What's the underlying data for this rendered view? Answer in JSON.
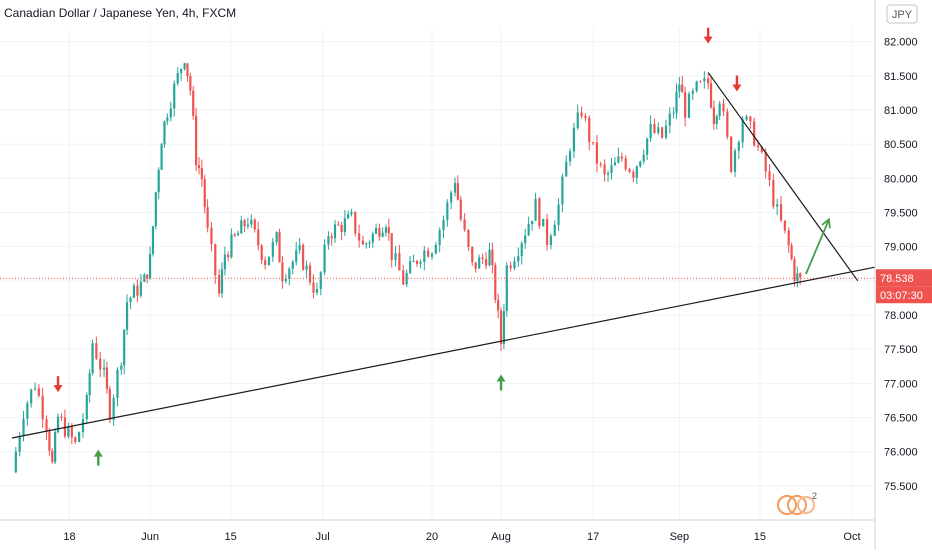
{
  "title": "Canadian Dollar / Japanese Yen, 4h, FXCM",
  "currency_badge": "JPY",
  "price_label": "78.538",
  "countdown_label": "03:07:30",
  "watermark_badge": "2",
  "colors": {
    "up": "#26a69a",
    "down": "#ef5350",
    "trendline": "#1a1a1a",
    "price_line": "#ef5350",
    "label_bg": "#ef5350",
    "arrow_red": "#e53935",
    "arrow_green": "#43a047",
    "grid": "#f0f3fa",
    "text": "#131722"
  },
  "chart_data": {
    "type": "candlestick",
    "title": "Canadian Dollar / Japanese Yen, 4h, FXCM",
    "y_axis": {
      "ticks": [
        "82.000",
        "81.500",
        "81.000",
        "80.500",
        "80.000",
        "79.500",
        "79.000",
        "78.500",
        "78.000",
        "77.500",
        "77.000",
        "76.500",
        "76.000",
        "75.500"
      ],
      "range": [
        75.0,
        82.2
      ],
      "side": "right"
    },
    "x_axis": {
      "ticks": [
        "18",
        "Jun",
        "15",
        "Jul",
        "20",
        "Aug",
        "17",
        "Sep",
        "15",
        "Oct"
      ]
    },
    "current_price": 78.538,
    "price_path": [
      {
        "t": "May 08",
        "price": 75.7
      },
      {
        "t": "May 10",
        "price": 76.6
      },
      {
        "t": "May 12",
        "price": 77.0
      },
      {
        "t": "May 14",
        "price": 76.4
      },
      {
        "t": "May 15",
        "price": 75.8
      },
      {
        "t": "May 16",
        "price": 76.5
      },
      {
        "t": "May 19",
        "price": 76.1
      },
      {
        "t": "May 21",
        "price": 76.7
      },
      {
        "t": "May 22",
        "price": 77.6
      },
      {
        "t": "May 24",
        "price": 77.1
      },
      {
        "t": "May 25",
        "price": 76.6
      },
      {
        "t": "May 27",
        "price": 77.4
      },
      {
        "t": "May 28",
        "price": 78.2
      },
      {
        "t": "May 31",
        "price": 78.5
      },
      {
        "t": "Jun 01",
        "price": 78.8
      },
      {
        "t": "Jun 02",
        "price": 79.8
      },
      {
        "t": "Jun 03",
        "price": 80.6
      },
      {
        "t": "Jun 04",
        "price": 81.0
      },
      {
        "t": "Jun 07",
        "price": 81.8
      },
      {
        "t": "Jun 08",
        "price": 81.3
      },
      {
        "t": "Jun 09",
        "price": 80.3
      },
      {
        "t": "Jun 10",
        "price": 80.0
      },
      {
        "t": "Jun 11",
        "price": 79.2
      },
      {
        "t": "Jun 13",
        "price": 78.3
      },
      {
        "t": "Jun 14",
        "price": 78.9
      },
      {
        "t": "Jun 18",
        "price": 79.4
      },
      {
        "t": "Jun 21",
        "price": 78.8
      },
      {
        "t": "Jun 23",
        "price": 79.1
      },
      {
        "t": "Jun 24",
        "price": 78.6
      },
      {
        "t": "Jun 27",
        "price": 78.9
      },
      {
        "t": "Jun 30",
        "price": 78.3
      },
      {
        "t": "Jul 02",
        "price": 79.2
      },
      {
        "t": "Jul 06",
        "price": 79.4
      },
      {
        "t": "Jul 08",
        "price": 79.0
      },
      {
        "t": "Jul 12",
        "price": 79.4
      },
      {
        "t": "Jul 13",
        "price": 78.9
      },
      {
        "t": "Jul 15",
        "price": 78.5
      },
      {
        "t": "Jul 18",
        "price": 78.9
      },
      {
        "t": "Jul 20",
        "price": 79.0
      },
      {
        "t": "Jul 22",
        "price": 79.4
      },
      {
        "t": "Jul 24",
        "price": 80.0
      },
      {
        "t": "Jul 25",
        "price": 79.4
      },
      {
        "t": "Jul 27",
        "price": 78.7
      },
      {
        "t": "Jul 30",
        "price": 78.9
      },
      {
        "t": "Jul 31",
        "price": 78.3
      },
      {
        "t": "Aug 01",
        "price": 77.6
      },
      {
        "t": "Aug 02",
        "price": 78.7
      },
      {
        "t": "Aug 04",
        "price": 79.0
      },
      {
        "t": "Aug 07",
        "price": 79.6
      },
      {
        "t": "Aug 09",
        "price": 79.1
      },
      {
        "t": "Aug 11",
        "price": 79.6
      },
      {
        "t": "Aug 13",
        "price": 80.5
      },
      {
        "t": "Aug 15",
        "price": 81.0
      },
      {
        "t": "Aug 17",
        "price": 80.4
      },
      {
        "t": "Aug 19",
        "price": 80.0
      },
      {
        "t": "Aug 22",
        "price": 80.3
      },
      {
        "t": "Aug 24",
        "price": 80.1
      },
      {
        "t": "Aug 27",
        "price": 80.7
      },
      {
        "t": "Aug 29",
        "price": 80.6
      },
      {
        "t": "Aug 31",
        "price": 81.0
      },
      {
        "t": "Sep 01",
        "price": 81.4
      },
      {
        "t": "Sep 02",
        "price": 81.0
      },
      {
        "t": "Sep 04",
        "price": 81.3
      },
      {
        "t": "Sep 06",
        "price": 81.4
      },
      {
        "t": "Sep 07",
        "price": 80.9
      },
      {
        "t": "Sep 08",
        "price": 81.2
      },
      {
        "t": "Sep 10",
        "price": 80.2
      },
      {
        "t": "Sep 12",
        "price": 80.9
      },
      {
        "t": "Sep 14",
        "price": 80.6
      },
      {
        "t": "Sep 16",
        "price": 80.1
      },
      {
        "t": "Sep 18",
        "price": 79.5
      },
      {
        "t": "Sep 20",
        "price": 79.0
      },
      {
        "t": "Sep 21",
        "price": 78.6
      },
      {
        "t": "Sep 22",
        "price": 78.5
      }
    ],
    "annotations": [
      {
        "kind": "trendline",
        "from": {
          "t": "May 08",
          "price": 76.2
        },
        "to": {
          "t": "Oct 05",
          "price": 78.7
        }
      },
      {
        "kind": "trendline",
        "from": {
          "t": "Sep 06",
          "price": 81.55
        },
        "to": {
          "t": "Oct 02",
          "price": 78.5
        }
      },
      {
        "kind": "arrow-down",
        "t": "May 16",
        "price": 76.9
      },
      {
        "kind": "arrow-up",
        "t": "May 23",
        "price": 76.0
      },
      {
        "kind": "arrow-up",
        "t": "Aug 01",
        "price": 77.1
      },
      {
        "kind": "arrow-down",
        "t": "Sep 06",
        "price": 82.0
      },
      {
        "kind": "arrow-down",
        "t": "Sep 11",
        "price": 81.3
      },
      {
        "kind": "projection-arrow",
        "from": {
          "t": "Sep 23",
          "price": 78.6
        },
        "to": {
          "t": "Sep 27",
          "price": 79.4
        }
      }
    ]
  }
}
